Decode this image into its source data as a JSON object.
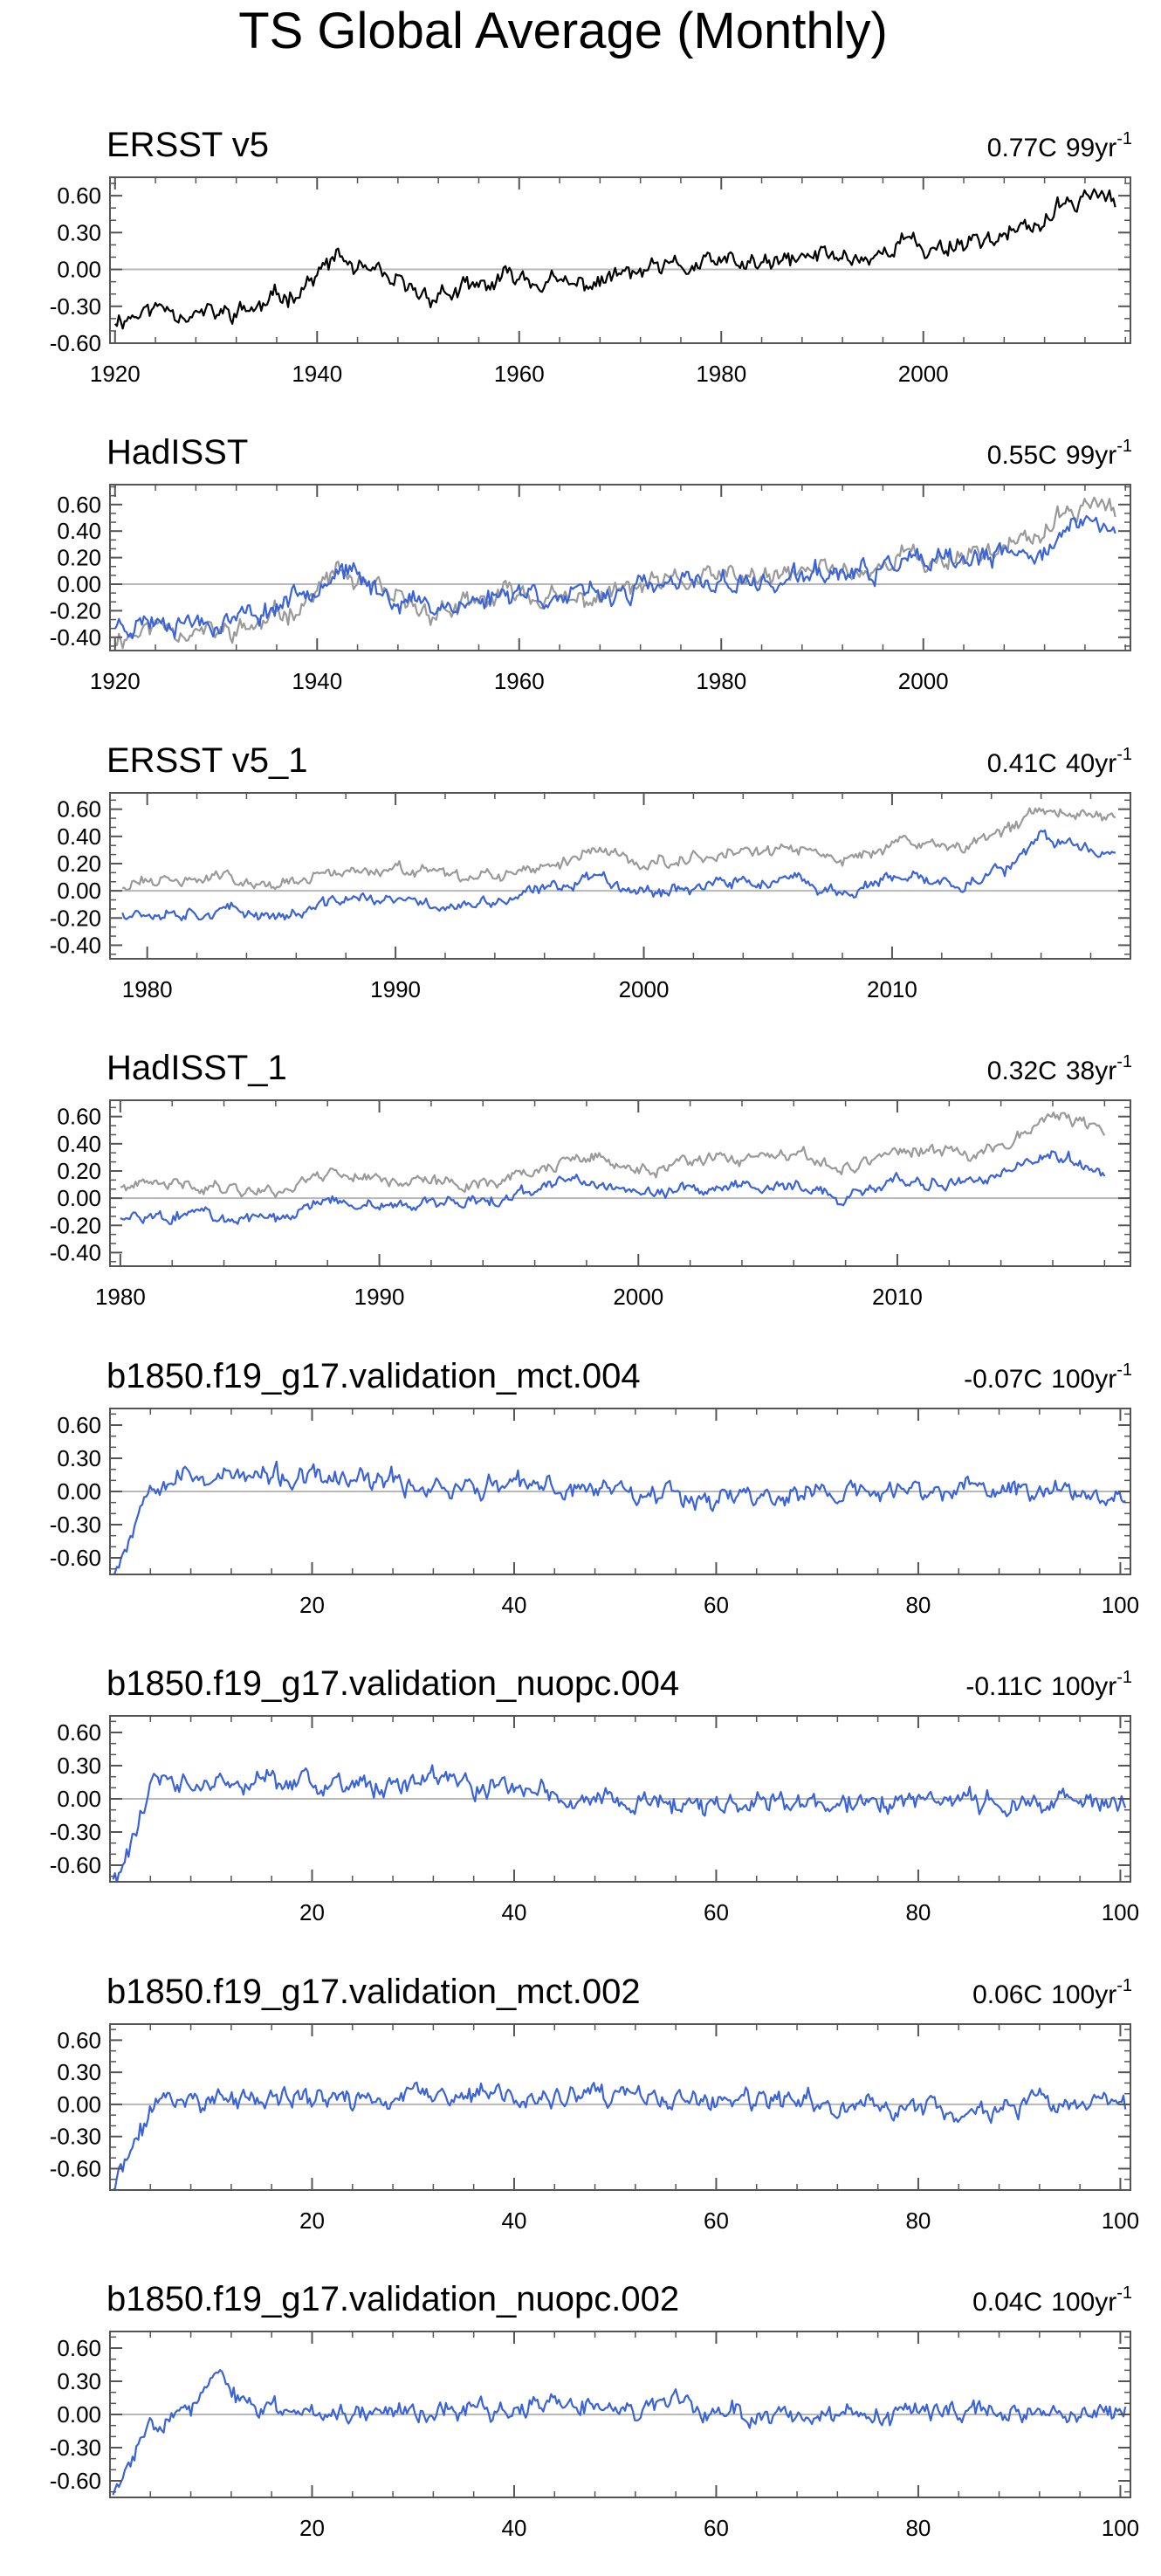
{
  "page_title": "TS Global Average (Monthly)",
  "colors": {
    "observed_line": "#000000",
    "reference_line": "#9a9a9a",
    "model_line": "#3a63d8",
    "zero_line": "#b8b8b8",
    "frame": "#555555"
  },
  "chart_data": [
    {
      "type": "line",
      "title": "ERSST v5",
      "trend_value": "0.77C",
      "trend_period": "99yr",
      "trend_exponent": "-1",
      "x_ticks": [
        1920,
        1940,
        1960,
        1980,
        2000
      ],
      "xlim": [
        1919.5,
        2020.5
      ],
      "y_ticks": [
        "0.60",
        "0.30",
        "0.00",
        "-0.30",
        "-0.60"
      ],
      "ylim": [
        -0.6,
        0.75
      ],
      "series": [
        {
          "name": "ERSST v5",
          "role": "observed",
          "x": [
            1920,
            1925,
            1930,
            1935,
            1940,
            1942,
            1945,
            1950,
            1955,
            1960,
            1965,
            1970,
            1975,
            1980,
            1985,
            1990,
            1995,
            1998,
            2000,
            2005,
            2010,
            2015,
            2016,
            2019
          ],
          "y": [
            -0.4,
            -0.3,
            -0.38,
            -0.3,
            -0.05,
            0.1,
            -0.05,
            -0.2,
            -0.18,
            -0.05,
            -0.15,
            -0.05,
            0.0,
            0.05,
            0.03,
            0.12,
            0.1,
            0.25,
            0.15,
            0.25,
            0.3,
            0.55,
            0.65,
            0.55
          ],
          "noise": 0.09,
          "seed": 11
        }
      ]
    },
    {
      "type": "line",
      "title": "HadISST",
      "trend_value": "0.55C",
      "trend_period": "99yr",
      "trend_exponent": "-1",
      "x_ticks": [
        1920,
        1940,
        1960,
        1980,
        2000
      ],
      "xlim": [
        1919.5,
        2020.5
      ],
      "y_ticks": [
        "0.60",
        "0.40",
        "0.20",
        "0.00",
        "-0.20",
        "-0.40"
      ],
      "ylim": [
        -0.5,
        0.75
      ],
      "series": [
        {
          "name": "ERSST v5",
          "role": "reference",
          "x": [
            1920,
            1925,
            1930,
            1935,
            1940,
            1942,
            1945,
            1950,
            1955,
            1960,
            1965,
            1970,
            1975,
            1980,
            1985,
            1990,
            1995,
            1998,
            2000,
            2005,
            2010,
            2015,
            2016,
            2019
          ],
          "y": [
            -0.4,
            -0.3,
            -0.38,
            -0.3,
            -0.05,
            0.1,
            -0.05,
            -0.2,
            -0.18,
            -0.05,
            -0.15,
            -0.05,
            0.0,
            0.05,
            0.03,
            0.12,
            0.1,
            0.25,
            0.15,
            0.25,
            0.3,
            0.55,
            0.65,
            0.55
          ],
          "noise": 0.09,
          "seed": 11
        },
        {
          "name": "HadISST",
          "role": "model",
          "x": [
            1920,
            1925,
            1930,
            1935,
            1940,
            1942,
            1945,
            1950,
            1955,
            1960,
            1965,
            1970,
            1975,
            1980,
            1985,
            1990,
            1995,
            1998,
            2000,
            2005,
            2010,
            2015,
            2016,
            2019
          ],
          "y": [
            -0.3,
            -0.25,
            -0.28,
            -0.2,
            0.02,
            0.12,
            -0.02,
            -0.15,
            -0.15,
            -0.03,
            -0.12,
            -0.05,
            -0.02,
            0.02,
            0.0,
            0.08,
            0.07,
            0.2,
            0.12,
            0.18,
            0.22,
            0.4,
            0.5,
            0.38
          ],
          "noise": 0.09,
          "seed": 23
        }
      ]
    },
    {
      "type": "line",
      "title": "ERSST v5_1",
      "trend_value": "0.41C",
      "trend_period": "40yr",
      "trend_exponent": "-1",
      "x_ticks": [
        1980,
        1990,
        2000,
        2010
      ],
      "xlim": [
        1978.5,
        2019.6
      ],
      "y_ticks": [
        "0.60",
        "0.40",
        "0.20",
        "0.00",
        "-0.20",
        "-0.40"
      ],
      "ylim": [
        -0.5,
        0.72
      ],
      "series": [
        {
          "name": "ERSST v5",
          "role": "reference",
          "x": [
            1979,
            1983,
            1986,
            1988,
            1990,
            1993,
            1995,
            1998,
            2000,
            2003,
            2006,
            2008,
            2010,
            2013,
            2015,
            2016,
            2019
          ],
          "y": [
            0.05,
            0.1,
            0.05,
            0.15,
            0.15,
            0.08,
            0.12,
            0.3,
            0.2,
            0.28,
            0.3,
            0.22,
            0.35,
            0.32,
            0.48,
            0.62,
            0.55
          ],
          "noise": 0.05,
          "seed": 31
        },
        {
          "name": "ERSST v5_1",
          "role": "model",
          "x": [
            1979,
            1983,
            1986,
            1988,
            1990,
            1993,
            1995,
            1998,
            2000,
            2003,
            2006,
            2008,
            2010,
            2013,
            2015,
            2016,
            2019
          ],
          "y": [
            -0.15,
            -0.15,
            -0.18,
            -0.05,
            -0.08,
            -0.12,
            -0.05,
            0.12,
            0.0,
            0.05,
            0.07,
            -0.02,
            0.08,
            0.06,
            0.2,
            0.38,
            0.28
          ],
          "noise": 0.05,
          "seed": 37
        }
      ]
    },
    {
      "type": "line",
      "title": "HadISST_1",
      "trend_value": "0.32C",
      "trend_period": "38yr",
      "trend_exponent": "-1",
      "x_ticks": [
        1980,
        1990,
        2000,
        2010
      ],
      "xlim": [
        1979.6,
        2019.0
      ],
      "y_ticks": [
        "0.60",
        "0.40",
        "0.20",
        "0.00",
        "-0.20",
        "-0.40"
      ],
      "ylim": [
        -0.5,
        0.72
      ],
      "series": [
        {
          "name": "ERSST v5",
          "role": "reference",
          "x": [
            1980,
            1983,
            1986,
            1988,
            1990,
            1993,
            1995,
            1998,
            2000,
            2003,
            2006,
            2008,
            2010,
            2013,
            2015,
            2016,
            2018
          ],
          "y": [
            0.08,
            0.1,
            0.05,
            0.2,
            0.15,
            0.1,
            0.15,
            0.3,
            0.2,
            0.28,
            0.3,
            0.22,
            0.35,
            0.32,
            0.5,
            0.62,
            0.5
          ],
          "noise": 0.05,
          "seed": 41
        },
        {
          "name": "HadISST_1",
          "role": "model",
          "x": [
            1980,
            1983,
            1986,
            1988,
            1990,
            1993,
            1995,
            1998,
            2000,
            2003,
            2006,
            2008,
            2010,
            2013,
            2015,
            2016,
            2018
          ],
          "y": [
            -0.12,
            -0.12,
            -0.18,
            -0.02,
            -0.05,
            -0.05,
            0.0,
            0.15,
            0.02,
            0.08,
            0.1,
            0.0,
            0.12,
            0.1,
            0.25,
            0.32,
            0.2
          ],
          "noise": 0.05,
          "seed": 43
        }
      ]
    },
    {
      "type": "line",
      "title": "b1850.f19_g17.validation_mct.004",
      "trend_value": "-0.07C",
      "trend_period": "100yr",
      "trend_exponent": "-1",
      "x_ticks": [
        20,
        40,
        60,
        80,
        100
      ],
      "xlim": [
        0,
        101
      ],
      "y_ticks": [
        "0.60",
        "0.30",
        "0.00",
        "-0.30",
        "-0.60"
      ],
      "ylim": [
        -0.75,
        0.75
      ],
      "series": [
        {
          "name": "b1850.f19_g17.validation_mct.004",
          "role": "model",
          "x": [
            0.3,
            1.5,
            3,
            4,
            8,
            15,
            25,
            35,
            45,
            50,
            55,
            60,
            70,
            80,
            90,
            100.5
          ],
          "y": [
            -0.7,
            -0.5,
            -0.15,
            0.15,
            0.15,
            0.12,
            0.08,
            0.05,
            0.02,
            0.05,
            0.0,
            -0.05,
            -0.02,
            0.0,
            0.02,
            0.0
          ],
          "noise": 0.11,
          "seed": 53
        }
      ]
    },
    {
      "type": "line",
      "title": "b1850.f19_g17.validation_nuopc.004",
      "trend_value": "-0.11C",
      "trend_period": "100yr",
      "trend_exponent": "-1",
      "x_ticks": [
        20,
        40,
        60,
        80,
        100
      ],
      "xlim": [
        0,
        101
      ],
      "y_ticks": [
        "0.60",
        "0.30",
        "0.00",
        "-0.30",
        "-0.60"
      ],
      "ylim": [
        -0.75,
        0.75
      ],
      "series": [
        {
          "name": "b1850.f19_g17.validation_nuopc.004",
          "role": "model",
          "x": [
            0.3,
            1.5,
            3,
            4,
            8,
            15,
            25,
            35,
            42,
            45,
            55,
            60,
            70,
            80,
            90,
            100.5
          ],
          "y": [
            -0.72,
            -0.55,
            -0.15,
            0.12,
            0.12,
            0.13,
            0.12,
            0.12,
            0.1,
            0.0,
            -0.02,
            -0.05,
            -0.05,
            -0.02,
            -0.03,
            -0.02
          ],
          "noise": 0.11,
          "seed": 61
        }
      ]
    },
    {
      "type": "line",
      "title": "b1850.f19_g17.validation_mct.002",
      "trend_value": "0.06C",
      "trend_period": "100yr",
      "trend_exponent": "-1",
      "x_ticks": [
        20,
        40,
        60,
        80,
        100
      ],
      "xlim": [
        0,
        101
      ],
      "y_ticks": [
        "0.60",
        "0.30",
        "0.00",
        "-0.30",
        "-0.60"
      ],
      "ylim": [
        -0.8,
        0.75
      ],
      "series": [
        {
          "name": "b1850.f19_g17.validation_mct.002",
          "role": "model",
          "x": [
            0.3,
            1.5,
            3,
            4.5,
            8,
            15,
            25,
            35,
            45,
            50,
            60,
            70,
            80,
            85,
            90,
            100.5
          ],
          "y": [
            -0.78,
            -0.55,
            -0.3,
            0.05,
            0.05,
            0.05,
            0.05,
            0.08,
            0.05,
            0.06,
            0.02,
            0.0,
            -0.02,
            -0.1,
            0.0,
            -0.05
          ],
          "noise": 0.11,
          "seed": 71
        }
      ]
    },
    {
      "type": "line",
      "title": "b1850.f19_g17.validation_nuopc.002",
      "trend_value": "0.04C",
      "trend_period": "100yr",
      "trend_exponent": "-1",
      "x_ticks": [
        20,
        40,
        60,
        80,
        100
      ],
      "xlim": [
        0,
        101
      ],
      "y_ticks": [
        "0.60",
        "0.30",
        "0.00",
        "-0.30",
        "-0.60"
      ],
      "ylim": [
        -0.75,
        0.75
      ],
      "series": [
        {
          "name": "b1850.f19_g17.validation_nuopc.002",
          "role": "model",
          "x": [
            0.3,
            1.5,
            3,
            4.5,
            8,
            11,
            13,
            20,
            30,
            40,
            50,
            60,
            70,
            75,
            80,
            90,
            100.5
          ],
          "y": [
            -0.72,
            -0.55,
            -0.25,
            0.0,
            0.05,
            0.35,
            0.05,
            0.05,
            0.03,
            0.05,
            0.08,
            0.03,
            0.0,
            -0.1,
            0.02,
            0.02,
            0.03
          ],
          "noise": 0.1,
          "seed": 83
        }
      ]
    }
  ]
}
